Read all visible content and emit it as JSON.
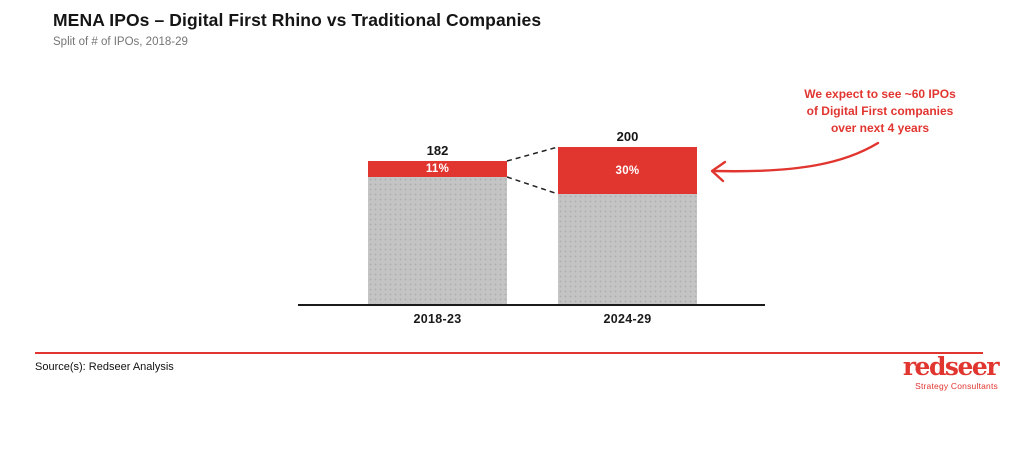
{
  "header": {
    "title": "MENA IPOs – Digital First Rhino vs Traditional Companies",
    "subtitle": "Split of # of IPOs, 2018-29"
  },
  "chart_data": {
    "type": "bar",
    "subtype": "stacked-percent",
    "title": "MENA IPOs – Digital First Rhino vs Traditional Companies",
    "subtitle": "Split of # of IPOs, 2018-29",
    "categories": [
      "2018-23",
      "2024-29"
    ],
    "totals": [
      182,
      200
    ],
    "total_labels": [
      "182",
      "200"
    ],
    "series": [
      {
        "name": "Digital First",
        "color": "#E13530",
        "pct": [
          11,
          30
        ],
        "pct_labels": [
          "11%",
          "30%"
        ]
      },
      {
        "name": "Traditional",
        "color": "#C4C4C4"
      }
    ],
    "annotation": {
      "lines": [
        "We expect to see ~60 IPOs",
        "of Digital First companies",
        "over next 4 years"
      ],
      "color": "#E13530"
    },
    "layout_hints": {
      "gridlines": false,
      "legend": false,
      "baseline_axis": true,
      "connector_lines": "dashed between Digital First segments of both bars"
    }
  },
  "footer": {
    "source": "Source(s): Redseer Analysis",
    "logo_text": "redseer",
    "logo_tagline": "Strategy Consultants",
    "accent_color": "#E13530"
  }
}
